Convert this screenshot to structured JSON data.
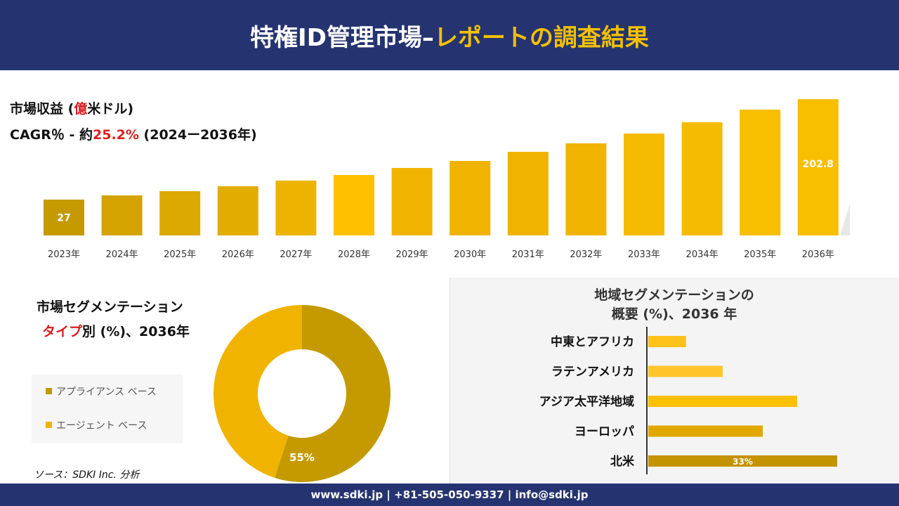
{
  "header": {
    "title_white": "特権ID管理市場–",
    "title_yellow": "レポートの調査結果"
  },
  "revenue": {
    "label_a": "市場収益 (",
    "label_red": "億",
    "label_b": "米ドル)",
    "cagr_a": "CAGR％ - 約",
    "cagr_red": "25.2%",
    "cagr_b": " (2024ー2036年)"
  },
  "chart_data": [
    {
      "type": "bar",
      "categories": [
        "2023年",
        "2024年",
        "2025年",
        "2026年",
        "2027年",
        "2028年",
        "2029年",
        "2030年",
        "2031年",
        "2032年",
        "2033年",
        "2034年",
        "2035年",
        "2036年"
      ],
      "values": [
        27,
        34.4,
        41.8,
        50.4,
        60.3,
        70.1,
        82.4,
        94.7,
        110.7,
        125.5,
        142.7,
        162.4,
        184.5,
        202.8
      ],
      "data_labels": {
        "0": "27",
        "13": "202.8"
      },
      "colors": [
        "#c49a00",
        "#d4a300",
        "#dba900",
        "#e2ad00",
        "#ecb400",
        "#ffc000",
        "#f0b400",
        "#f0b400",
        "#f0b400",
        "#f0b400",
        "#f5bb00",
        "#f5bb00",
        "#f8be00",
        "#f8be00"
      ]
    },
    {
      "type": "pie",
      "title": "市場セグメンテーション タイプ別 (%)、2036年",
      "labels": [
        "アプライアンス ベース",
        "エージェント ベース"
      ],
      "values": [
        55,
        45
      ],
      "data_labels": [
        "55%",
        ""
      ],
      "colors": [
        "#c49a00",
        "#f0b400"
      ]
    },
    {
      "type": "bar",
      "orientation": "horizontal",
      "title": "地域セグメンテーションの概要 (%)、2036 年",
      "categories": [
        "中東とアフリカ",
        "ラテンアメリカ",
        "アジア太平洋地域",
        "ヨーロッパ",
        "北米"
      ],
      "values": [
        6.6,
        13,
        26,
        20,
        33
      ],
      "data_labels": [
        "",
        "",
        "",
        "",
        "33%"
      ],
      "colors": [
        "#ffc21a",
        "#ffc52b",
        "#ffc000",
        "#e0a800",
        "#c49300"
      ]
    }
  ],
  "segment": {
    "title": "市場セグメンテーション",
    "sub_red": "タイプ",
    "sub_rest": "別 (%)、2036年"
  },
  "region": {
    "title1": "地域セグメンテーションの",
    "title2": "概要 (%)、2036 年"
  },
  "source": "ソース：SDKI Inc. 分析",
  "footer": "www.sdki.jp | +81-505-050-9337 | info@sdki.jp"
}
